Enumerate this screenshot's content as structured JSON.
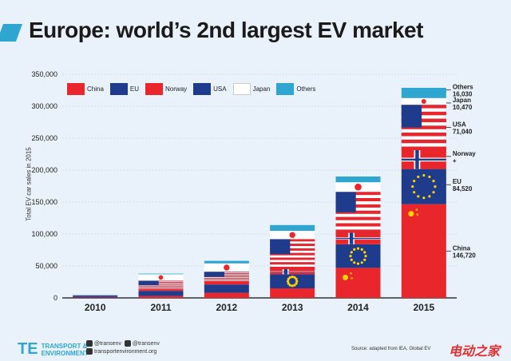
{
  "header": {
    "title": "Europe: world’s 2nd largest EV market"
  },
  "chart_data": {
    "type": "bar",
    "stacked": true,
    "ylabel": "Total EV car sales in 2015",
    "ylim": [
      0,
      350000
    ],
    "yticks": [
      "0",
      "50,000",
      "100,000",
      "150,000",
      "200,000",
      "250,000",
      "300,000",
      "350,000"
    ],
    "categories": [
      "2010",
      "2011",
      "2012",
      "2013",
      "2014",
      "2015"
    ],
    "series": [
      {
        "name": "China",
        "color": "#e8262b",
        "values": [
          500,
          3000,
          8000,
          15000,
          47000,
          146720
        ]
      },
      {
        "name": "EU",
        "color": "#1f3c8c",
        "values": [
          1500,
          8000,
          13000,
          22000,
          37000,
          55000
        ]
      },
      {
        "name": "Norway",
        "color": "#e8262b",
        "values": [
          300,
          2000,
          4000,
          8000,
          18000,
          29520
        ]
      },
      {
        "name": "USA",
        "color": "#1f3c8c",
        "values": [
          1500,
          14000,
          16000,
          47000,
          64000,
          71040
        ]
      },
      {
        "name": "Japan",
        "color": "#ffffff",
        "values": [
          1000,
          10000,
          13000,
          13000,
          15000,
          10470
        ]
      },
      {
        "name": "Others",
        "color": "#2fa6cf",
        "values": [
          300,
          1000,
          4000,
          9000,
          9000,
          16030
        ]
      }
    ],
    "annotations_2015": [
      {
        "label": "Others",
        "value": "16,030"
      },
      {
        "label": "Japan",
        "value": "10,470"
      },
      {
        "label": "USA",
        "value": "71,040"
      },
      {
        "label": "Norway",
        "value": "+"
      },
      {
        "label": "EU",
        "value": "84,520"
      },
      {
        "label": "China",
        "value": "146,720"
      }
    ]
  },
  "footer": {
    "logo_line1": "TRANSPORT &",
    "logo_line2": "ENVIRONMENT",
    "twitter": "@transenv",
    "facebook": "@transenv",
    "website": "transportenvironment.org",
    "source": "Source: adapted from IEA, Global EV",
    "watermark": "电动之家"
  }
}
